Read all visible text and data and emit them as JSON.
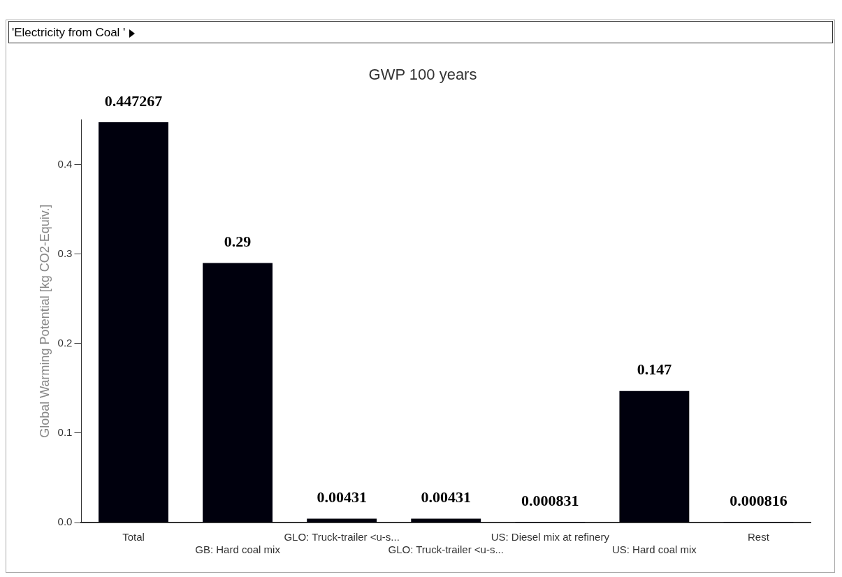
{
  "chart_data": {
    "type": "bar",
    "title": "GWP 100 years",
    "ylabel": "Global Warming Potential [kg CO2-Equiv.]",
    "annotations": [
      "'Electricity from Coal '"
    ],
    "categories": [
      "Total",
      "GB: Hard coal mix",
      "GLO: Truck-trailer <u-s...",
      "GLO: Truck-trailer <u-s...",
      "US: Diesel mix at refinery",
      "US: Hard coal mix",
      "Rest"
    ],
    "values": [
      0.447267,
      0.29,
      0.00431,
      0.00431,
      0.000831,
      0.147,
      0.000816
    ],
    "color": "#00000d",
    "ylim": [
      0,
      0.45
    ],
    "yticks": [
      {
        "value": 0,
        "label": "0.0"
      },
      {
        "value": 0.1,
        "label": "0.1"
      },
      {
        "value": 0.2,
        "label": "0.2"
      },
      {
        "value": 0.3,
        "label": "0.3"
      },
      {
        "value": 0.4,
        "label": "0.4"
      }
    ],
    "data_labels": true,
    "grid": false,
    "legend": false
  }
}
